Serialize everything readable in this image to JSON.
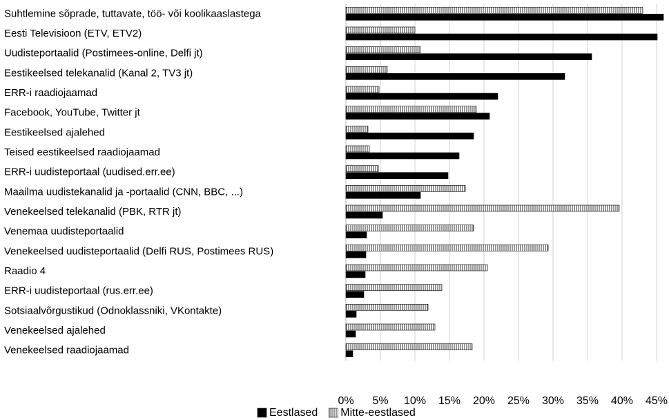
{
  "chart_data": {
    "type": "barh",
    "categories": [
      "Suhtlemine sõprade, tuttavate, töö- või koolikaaslastega",
      "Eesti Televisioon (ETV, ETV2)",
      "Uudisteportaalid (Postimees-online, Delfi jt)",
      "Eestikeelsed telekanalid (Kanal 2, TV3 jt)",
      "ERR-i raadiojaamad",
      "Facebook, YouTube, Twitter jt",
      "Eestikeelsed ajalehed",
      "Teised eestikeelsed raadiojaamad",
      "ERR-i uudisteportaal (uudised.err.ee)",
      "Maailma uudistekanalid ja -portaalid (CNN, BBC, ...)",
      "Venekeelsed telekanalid (PBK, RTR jt)",
      "Venemaa uudisteportaalid",
      "Venekeelsed uudisteportaalid (Delfi RUS, Postimees RUS)",
      "Raadio 4",
      "ERR-i uudisteportaal (rus.err.ee)",
      "Sotsiaalvõrgustikud (Odnoklassniki, VKontakte)",
      "Venekeelsed ajalehed",
      "Venekeelsed raadiojaamad"
    ],
    "series": [
      {
        "name": "Eestlased",
        "color": "#000000",
        "values": [
          46.0,
          45.1,
          35.6,
          31.7,
          22.0,
          20.8,
          18.5,
          16.4,
          14.8,
          10.8,
          5.3,
          3.0,
          2.9,
          2.8,
          2.6,
          1.5,
          1.4,
          1.0
        ]
      },
      {
        "name": "Mitte-eestlased",
        "color": "#000000",
        "hatch": "vertical",
        "values": [
          43.0,
          10.0,
          10.8,
          6.0,
          4.8,
          18.9,
          3.2,
          3.4,
          4.7,
          17.3,
          39.6,
          18.5,
          29.3,
          20.5,
          13.9,
          11.9,
          12.9,
          18.3
        ]
      }
    ],
    "xlim": [
      0,
      46
    ],
    "xticks": [
      {
        "value": 0,
        "label": "0%"
      },
      {
        "value": 5,
        "label": "5%"
      },
      {
        "value": 10,
        "label": "10%"
      },
      {
        "value": 15,
        "label": "15%"
      },
      {
        "value": 20,
        "label": "20%"
      },
      {
        "value": 25,
        "label": "25%"
      },
      {
        "value": 30,
        "label": "30%"
      },
      {
        "value": 35,
        "label": "35%"
      },
      {
        "value": 40,
        "label": "40%"
      },
      {
        "value": 45,
        "label": "45%"
      }
    ],
    "grid": true,
    "legend": "bottom"
  }
}
